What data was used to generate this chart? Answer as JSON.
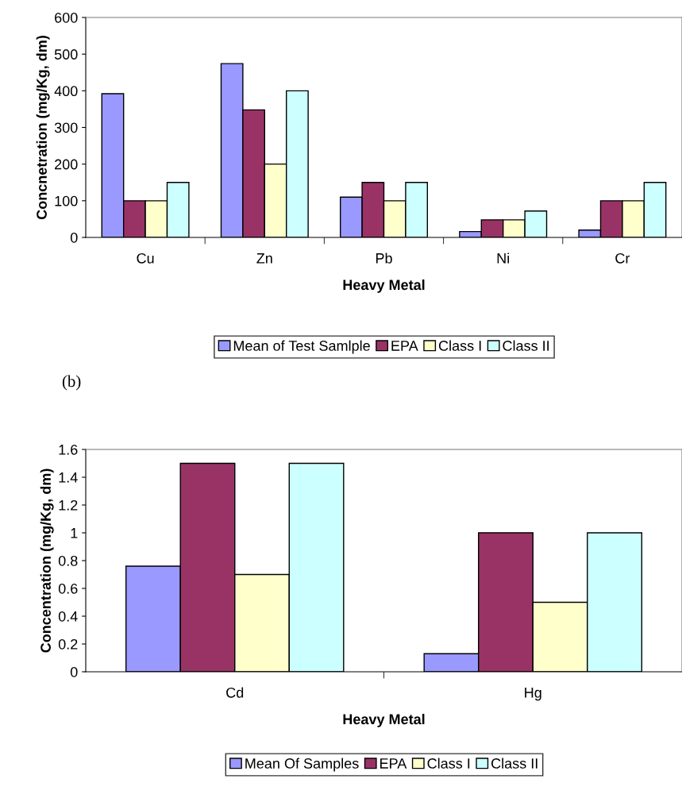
{
  "chart_data": [
    {
      "type": "bar",
      "xlabel": "Heavy Metal",
      "ylabel": "Concnetration (mg/Kg, dm)",
      "categories": [
        "Cu",
        "Zn",
        "Pb",
        "Ni",
        "Cr"
      ],
      "ylim": [
        0,
        600
      ],
      "yticks": [
        0,
        100,
        200,
        300,
        400,
        500,
        600
      ],
      "grid": false,
      "legend": "bottom",
      "series": [
        {
          "name": "Mean of Test Samlple",
          "color": "#9999ff",
          "values": [
            392,
            474,
            110,
            16,
            20
          ]
        },
        {
          "name": "EPA",
          "color": "#993366",
          "values": [
            100,
            348,
            150,
            48,
            100
          ]
        },
        {
          "name": "Class I",
          "color": "#ffffcc",
          "values": [
            100,
            200,
            100,
            48,
            100
          ]
        },
        {
          "name": "Class II",
          "color": "#ccffff",
          "values": [
            150,
            400,
            150,
            72,
            150
          ]
        }
      ]
    },
    {
      "type": "bar",
      "xlabel": "Heavy Metal",
      "ylabel": "Concentration (mg/Kg, dm)",
      "annotations": [
        "(b)"
      ],
      "categories": [
        "Cd",
        "Hg"
      ],
      "ylim": [
        0,
        1.6
      ],
      "yticks": [
        0,
        0.2,
        0.4,
        0.6,
        0.8,
        1,
        1.2,
        1.4,
        1.6
      ],
      "grid": false,
      "legend": "bottom",
      "series": [
        {
          "name": "Mean Of Samples",
          "color": "#9999ff",
          "values": [
            0.76,
            0.13
          ]
        },
        {
          "name": "EPA",
          "color": "#993366",
          "values": [
            1.5,
            1.0
          ]
        },
        {
          "name": "Class I",
          "color": "#ffffcc",
          "values": [
            0.7,
            0.5
          ]
        },
        {
          "name": "Class II",
          "color": "#ccffff",
          "values": [
            1.5,
            1.0
          ]
        }
      ]
    }
  ]
}
